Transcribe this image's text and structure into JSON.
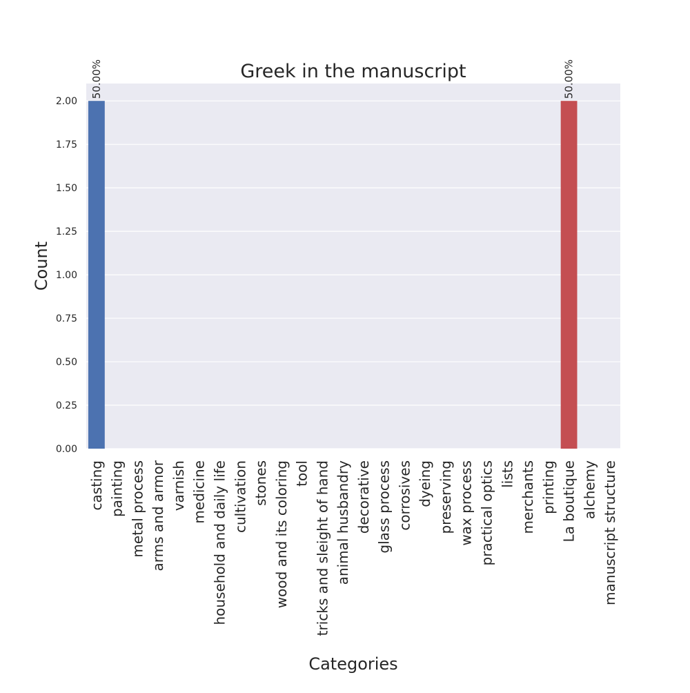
{
  "chart_data": {
    "type": "bar",
    "title": "Greek in the manuscript",
    "xlabel": "Categories",
    "ylabel": "Count",
    "ylim": [
      0,
      2.1
    ],
    "grid": true,
    "yticks": [
      "0.00",
      "0.25",
      "0.50",
      "0.75",
      "1.00",
      "1.25",
      "1.50",
      "1.75",
      "2.00"
    ],
    "categories": [
      "casting",
      "painting",
      "metal process",
      "arms and armor",
      "varnish",
      "medicine",
      "household and daily life",
      "cultivation",
      "stones",
      "wood and its coloring",
      "tool",
      "tricks and sleight of hand",
      "animal husbandry",
      "decorative",
      "glass process",
      "corrosives",
      "dyeing",
      "preserving",
      "wax process",
      "practical optics",
      "lists",
      "merchants",
      "printing",
      "La boutique",
      "alchemy",
      "manuscript structure"
    ],
    "values": [
      2,
      0,
      0,
      0,
      0,
      0,
      0,
      0,
      0,
      0,
      0,
      0,
      0,
      0,
      0,
      0,
      0,
      0,
      0,
      0,
      0,
      0,
      0,
      2,
      0,
      0
    ],
    "bar_labels": [
      "50.00%",
      "",
      "",
      "",
      "",
      "",
      "",
      "",
      "",
      "",
      "",
      "",
      "",
      "",
      "",
      "",
      "",
      "",
      "",
      "",
      "",
      "",
      "",
      "50.00%",
      "",
      ""
    ],
    "colors": {
      "background": "#eaeaf2",
      "grid": "#ffffff",
      "palette": [
        "#4c72b0",
        "#dd8452",
        "#55a868",
        "#c44e52",
        "#8172b3",
        "#937860",
        "#da8bc3",
        "#8c8c8c",
        "#ccb974",
        "#64b5cd"
      ]
    }
  }
}
